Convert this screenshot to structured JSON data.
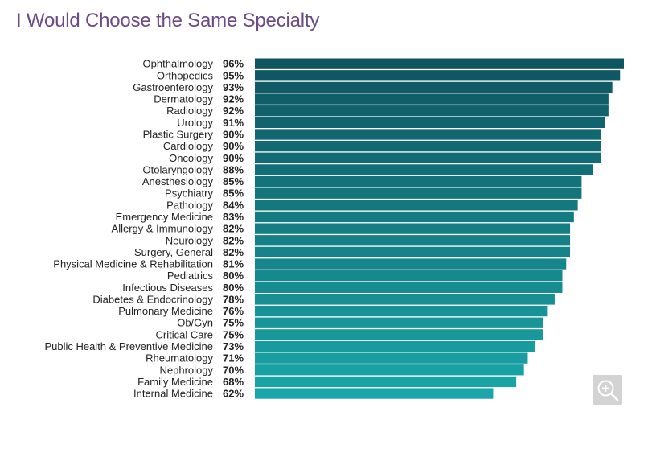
{
  "title": "I Would Choose the Same Specialty",
  "zoom_button": {
    "icon": "zoom-in-icon"
  },
  "colors": {
    "title": "#6b4a86",
    "bar_top": "#0f5560",
    "bar_bottom": "#1aa6a8",
    "zoom_bg": "#d3d3d3"
  },
  "chart_data": {
    "type": "bar",
    "orientation": "horizontal",
    "title": "I Would Choose the Same Specialty",
    "xlabel": "",
    "ylabel": "",
    "xlim": [
      0,
      96
    ],
    "grid": false,
    "legend": false,
    "categories": [
      "Ophthalmology",
      "Orthopedics",
      "Gastroenterology",
      "Dermatology",
      "Radiology",
      "Urology",
      "Plastic Surgery",
      "Cardiology",
      "Oncology",
      "Otolaryngology",
      "Anesthesiology",
      "Psychiatry",
      "Pathology",
      "Emergency Medicine",
      "Allergy & Immunology",
      "Neurology",
      "Surgery, General",
      "Physical Medicine & Rehabilitation",
      "Pediatrics",
      "Infectious Diseases",
      "Diabetes & Endocrinology",
      "Pulmonary Medicine",
      "Ob/Gyn",
      "Critical Care",
      "Public Health & Preventive Medicine",
      "Rheumatology",
      "Nephrology",
      "Family Medicine",
      "Internal Medicine"
    ],
    "values": [
      96,
      95,
      93,
      92,
      92,
      91,
      90,
      90,
      90,
      88,
      85,
      85,
      84,
      83,
      82,
      82,
      82,
      81,
      80,
      80,
      78,
      76,
      75,
      75,
      73,
      71,
      70,
      68,
      62
    ],
    "value_labels": [
      "96%",
      "95%",
      "93%",
      "92%",
      "92%",
      "91%",
      "90%",
      "90%",
      "90%",
      "88%",
      "85%",
      "85%",
      "84%",
      "83%",
      "82%",
      "82%",
      "82%",
      "81%",
      "80%",
      "80%",
      "78%",
      "76%",
      "75%",
      "75%",
      "73%",
      "71%",
      "70%",
      "68%",
      "62%"
    ]
  }
}
